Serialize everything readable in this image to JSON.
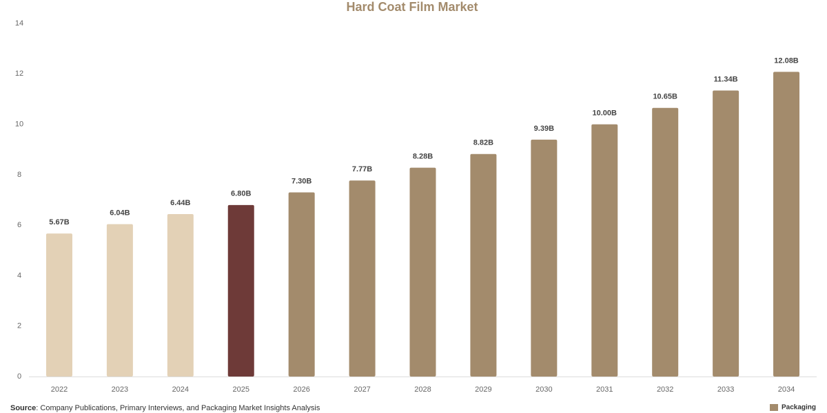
{
  "chart_data": {
    "type": "bar",
    "title": "Hard Coat Film Market",
    "categories": [
      "2022",
      "2023",
      "2024",
      "2025",
      "2026",
      "2027",
      "2028",
      "2029",
      "2030",
      "2031",
      "2032",
      "2033",
      "2034"
    ],
    "values": [
      5.67,
      6.04,
      6.44,
      6.8,
      7.3,
      7.77,
      8.28,
      8.82,
      9.39,
      10,
      10.65,
      11.34,
      12.08
    ],
    "value_labels": [
      "5.67B",
      "6.04B",
      "6.44B",
      "6.80B",
      "7.30B",
      "7.77B",
      "8.28B",
      "8.82B",
      "9.39B",
      "10.00B",
      "10.65B",
      "11.34B",
      "12.08B"
    ],
    "colors": [
      "#e3d1b6",
      "#e3d1b6",
      "#e3d1b6",
      "#6e3a38",
      "#a38b6c",
      "#a38b6c",
      "#a38b6c",
      "#a38b6c",
      "#a38b6c",
      "#a38b6c",
      "#a38b6c",
      "#a38b6c",
      "#a38b6c"
    ],
    "ylim": [
      0,
      14
    ],
    "yticks": [
      0,
      2,
      4,
      6,
      8,
      10,
      12,
      14
    ],
    "grid": false
  },
  "source_label": "Source",
  "source_text": ": Company Publications, Primary Interviews, and Packaging Market Insights Analysis",
  "logo": "Packaging"
}
